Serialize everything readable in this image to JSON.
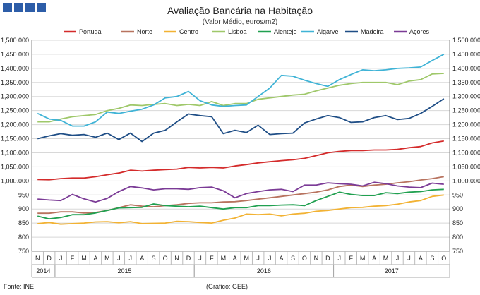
{
  "header": {
    "title": "Avaliação Bancária na Habitação",
    "subtitle": "(Valor Médio, euros/m2)"
  },
  "footer": {
    "source": "Fonte:  INE",
    "credit": "(Gráfico:  GEE)"
  },
  "chart_data": {
    "type": "line",
    "title": "Avaliação Bancária na Habitação",
    "subtitle": "(Valor Médio, euros/m2)",
    "xlabel": "",
    "ylabel": "euros/m2",
    "ylim": [
      750,
      1500
    ],
    "ystep": 50,
    "grid": true,
    "legend": "top",
    "x": [
      "N",
      "D",
      "J",
      "F",
      "M",
      "A",
      "M",
      "J",
      "J",
      "A",
      "S",
      "O",
      "N",
      "D",
      "J",
      "F",
      "M",
      "A",
      "M",
      "J",
      "J",
      "A",
      "S",
      "O",
      "N",
      "D",
      "J",
      "F",
      "M",
      "A",
      "M",
      "J",
      "J",
      "A",
      "S",
      "O"
    ],
    "years": [
      {
        "label": "2014",
        "start": 0,
        "end": 1
      },
      {
        "label": "2015",
        "start": 2,
        "end": 13
      },
      {
        "label": "2016",
        "start": 14,
        "end": 25
      },
      {
        "label": "2017",
        "start": 26,
        "end": 35
      }
    ],
    "series": [
      {
        "name": "Portugal",
        "color": "#d42b2b",
        "values": [
          1005,
          1004,
          1008,
          1010,
          1010,
          1015,
          1022,
          1028,
          1038,
          1035,
          1038,
          1040,
          1042,
          1048,
          1046,
          1048,
          1046,
          1053,
          1058,
          1064,
          1068,
          1072,
          1075,
          1080,
          1090,
          1100,
          1105,
          1108,
          1108,
          1110,
          1110,
          1112,
          1118,
          1122,
          1135,
          1142
        ]
      },
      {
        "name": "Norte",
        "color": "#b8735f",
        "values": [
          885,
          885,
          890,
          890,
          886,
          888,
          895,
          905,
          915,
          910,
          908,
          912,
          915,
          920,
          922,
          922,
          925,
          926,
          930,
          935,
          940,
          945,
          950,
          955,
          960,
          968,
          980,
          985,
          980,
          985,
          988,
          993,
          997,
          1003,
          1008,
          1015
        ]
      },
      {
        "name": "Centro",
        "color": "#f2b233",
        "values": [
          848,
          852,
          846,
          848,
          850,
          854,
          855,
          851,
          855,
          848,
          849,
          850,
          856,
          855,
          852,
          850,
          860,
          868,
          882,
          880,
          882,
          876,
          882,
          885,
          892,
          895,
          900,
          905,
          906,
          910,
          912,
          917,
          925,
          930,
          945,
          950
        ]
      },
      {
        "name": "Lisboa",
        "color": "#9fc86a",
        "values": [
          1210,
          1210,
          1220,
          1228,
          1232,
          1236,
          1250,
          1258,
          1270,
          1268,
          1272,
          1275,
          1268,
          1272,
          1268,
          1282,
          1268,
          1275,
          1275,
          1290,
          1295,
          1300,
          1305,
          1308,
          1320,
          1330,
          1340,
          1346,
          1350,
          1350,
          1350,
          1342,
          1355,
          1360,
          1380,
          1382
        ]
      },
      {
        "name": "Alentejo",
        "color": "#20a050",
        "values": [
          875,
          865,
          870,
          880,
          880,
          886,
          895,
          904,
          905,
          906,
          918,
          912,
          910,
          908,
          910,
          905,
          900,
          905,
          905,
          912,
          912,
          914,
          915,
          912,
          930,
          945,
          960,
          952,
          948,
          948,
          958,
          955,
          960,
          962,
          968,
          970
        ]
      },
      {
        "name": "Algarve",
        "color": "#3fb3d6",
        "values": [
          1240,
          1220,
          1215,
          1195,
          1195,
          1210,
          1245,
          1240,
          1248,
          1255,
          1270,
          1295,
          1300,
          1318,
          1285,
          1270,
          1265,
          1268,
          1270,
          1300,
          1330,
          1375,
          1372,
          1358,
          1346,
          1336,
          1360,
          1378,
          1395,
          1392,
          1395,
          1400,
          1402,
          1405,
          1428,
          1450
        ]
      },
      {
        "name": "Madeira",
        "color": "#1f4e86",
        "values": [
          1150,
          1160,
          1168,
          1162,
          1165,
          1155,
          1170,
          1147,
          1170,
          1140,
          1170,
          1180,
          1210,
          1238,
          1232,
          1228,
          1168,
          1180,
          1172,
          1198,
          1165,
          1168,
          1170,
          1206,
          1220,
          1232,
          1225,
          1208,
          1210,
          1225,
          1232,
          1218,
          1222,
          1240,
          1265,
          1292
        ]
      },
      {
        "name": "Açores",
        "color": "#7b3b96",
        "values": [
          935,
          932,
          930,
          952,
          936,
          925,
          938,
          962,
          980,
          975,
          968,
          972,
          972,
          970,
          976,
          978,
          965,
          940,
          955,
          962,
          968,
          970,
          962,
          985,
          985,
          993,
          990,
          988,
          982,
          995,
          990,
          982,
          978,
          976,
          992,
          988
        ]
      }
    ]
  }
}
